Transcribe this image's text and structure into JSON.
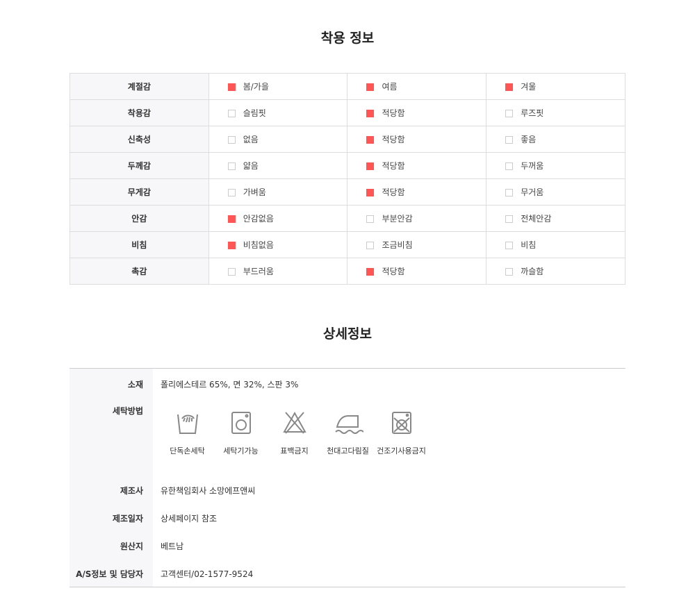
{
  "fit": {
    "title": "착용 정보",
    "accent": "#ff5555",
    "rows": [
      {
        "label": "계절감",
        "options": [
          {
            "text": "봄/가을",
            "checked": true
          },
          {
            "text": "여름",
            "checked": true
          },
          {
            "text": "겨울",
            "checked": true
          }
        ]
      },
      {
        "label": "착용감",
        "options": [
          {
            "text": "슬림핏",
            "checked": false
          },
          {
            "text": "적당함",
            "checked": true
          },
          {
            "text": "루즈핏",
            "checked": false
          }
        ]
      },
      {
        "label": "신축성",
        "options": [
          {
            "text": "없음",
            "checked": false
          },
          {
            "text": "적당함",
            "checked": true
          },
          {
            "text": "좋음",
            "checked": false
          }
        ]
      },
      {
        "label": "두께감",
        "options": [
          {
            "text": "얇음",
            "checked": false
          },
          {
            "text": "적당함",
            "checked": true
          },
          {
            "text": "두꺼움",
            "checked": false
          }
        ]
      },
      {
        "label": "무게감",
        "options": [
          {
            "text": "가벼움",
            "checked": false
          },
          {
            "text": "적당함",
            "checked": true
          },
          {
            "text": "무거움",
            "checked": false
          }
        ]
      },
      {
        "label": "안감",
        "options": [
          {
            "text": "안감없음",
            "checked": true
          },
          {
            "text": "부분안감",
            "checked": false
          },
          {
            "text": "전체안감",
            "checked": false
          }
        ]
      },
      {
        "label": "비침",
        "options": [
          {
            "text": "비침없음",
            "checked": true
          },
          {
            "text": "조금비침",
            "checked": false
          },
          {
            "text": "비침",
            "checked": false
          }
        ]
      },
      {
        "label": "촉감",
        "options": [
          {
            "text": "부드러움",
            "checked": false
          },
          {
            "text": "적당함",
            "checked": true
          },
          {
            "text": "까슬함",
            "checked": false
          }
        ]
      }
    ]
  },
  "detail": {
    "title": "상세정보",
    "material": {
      "label": "소재",
      "value": "폴리에스테르 65%, 면 32%, 스판 3%"
    },
    "washing": {
      "label": "세탁방법",
      "icons": [
        {
          "icon": "hand-wash-icon",
          "label": "단독손세탁"
        },
        {
          "icon": "washing-machine-icon",
          "label": "세탁기가능"
        },
        {
          "icon": "no-bleach-icon",
          "label": "표백금지"
        },
        {
          "icon": "iron-with-cloth-icon",
          "label": "천대고다림질"
        },
        {
          "icon": "no-tumble-dry-icon",
          "label": "건조기사용금지"
        }
      ]
    },
    "manufacturer": {
      "label": "제조사",
      "value": "유한책임회사 소망에프앤씨"
    },
    "date": {
      "label": "제조일자",
      "value": "상세페이지 참조"
    },
    "origin": {
      "label": "원산지",
      "value": "베트남"
    },
    "as": {
      "label": "A/S정보 및 담당자",
      "value": "고객센터/02-1577-9524"
    }
  }
}
